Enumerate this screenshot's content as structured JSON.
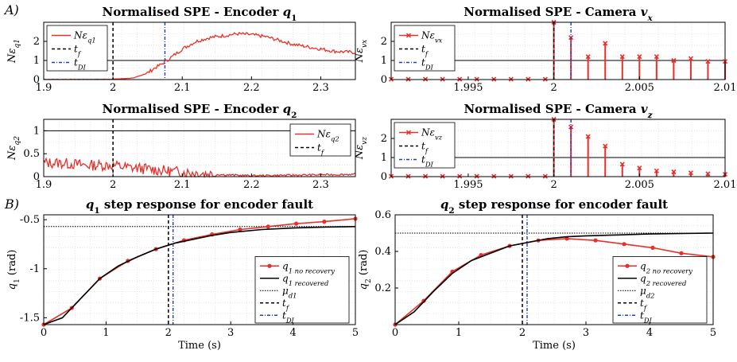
{
  "panel_labels": [
    "A)",
    "B)"
  ],
  "colors": {
    "red": "#e8302a",
    "black": "#000000",
    "blue": "#1f3fbf",
    "grid": "#d7d7d7"
  },
  "chart_data": [
    {
      "id": "p1",
      "type": "line",
      "title": "Normalised SPE - Encoder q1",
      "ylabel": "Nε_q1",
      "xlabel": "",
      "xlim": [
        1.9,
        2.35
      ],
      "ylim": [
        0,
        3.0
      ],
      "xticks": [
        1.9,
        2.0,
        2.1,
        2.2,
        2.3
      ],
      "xticklabels": [
        "1.9",
        "2",
        "2.1",
        "2.2",
        "2.3"
      ],
      "yticks": [
        0,
        1,
        2
      ],
      "yticklabels": [
        "0",
        "1",
        "2"
      ],
      "threshold": 1,
      "t_f": 2.0,
      "t_DI": 2.075,
      "series": [
        {
          "name": "Nε_q1",
          "x": [
            1.9,
            1.97,
            2.0,
            2.03,
            2.05,
            2.06,
            2.07,
            2.08,
            2.1,
            2.12,
            2.14,
            2.16,
            2.18,
            2.2,
            2.22,
            2.24,
            2.26,
            2.28,
            2.3,
            2.32,
            2.35
          ],
          "y": [
            0.01,
            0.01,
            0.02,
            0.08,
            0.35,
            0.6,
            0.8,
            1.05,
            1.6,
            2.0,
            2.2,
            2.3,
            2.4,
            2.35,
            2.25,
            2.05,
            1.85,
            1.72,
            1.6,
            1.48,
            1.42
          ]
        }
      ],
      "legend": [
        "Nε_q1",
        "t_f",
        "t_DI"
      ],
      "legend_position": "top-left"
    },
    {
      "id": "p2",
      "type": "stem",
      "title": "Normalised SPE - Camera vx",
      "ylabel": "Nε_vx",
      "xlabel": "",
      "xlim": [
        1.9905,
        2.01
      ],
      "ylim": [
        0,
        3.0
      ],
      "xticks": [
        1.995,
        2.0,
        2.005,
        2.01
      ],
      "xticklabels": [
        "1.995",
        "2",
        "2.005",
        "2.01"
      ],
      "yticks": [
        0,
        1,
        2
      ],
      "yticklabels": [
        "0",
        "1",
        "2"
      ],
      "threshold": 1,
      "t_f": 2.0,
      "t_DI": 2.001,
      "series": [
        {
          "name": "Nε_vx",
          "x": [
            1.9905,
            1.9915,
            1.9925,
            1.9935,
            1.9945,
            1.9955,
            1.9965,
            1.9975,
            1.9985,
            1.9995,
            2.0,
            2.001,
            2.002,
            2.003,
            2.004,
            2.005,
            2.006,
            2.007,
            2.008,
            2.009,
            2.01
          ],
          "y": [
            0.02,
            0.02,
            0.02,
            0.02,
            0.02,
            0.02,
            0.02,
            0.02,
            0.02,
            0.02,
            3.0,
            2.2,
            1.2,
            1.9,
            1.2,
            1.2,
            1.2,
            1.0,
            1.1,
            0.95,
            0.95
          ]
        }
      ],
      "legend": [
        "Nε_vx",
        "t_f",
        "t_DI"
      ],
      "legend_position": "top-left"
    },
    {
      "id": "p3",
      "type": "line",
      "title": "Normalised SPE - Encoder q2",
      "ylabel": "Nε_q2",
      "xlabel": "",
      "xlim": [
        1.9,
        2.35
      ],
      "ylim": [
        0,
        1.25
      ],
      "xticks": [
        1.9,
        2.0,
        2.1,
        2.2,
        2.3
      ],
      "xticklabels": [
        "1.9",
        "2",
        "2.1",
        "2.2",
        "2.3"
      ],
      "yticks": [
        0,
        0.5,
        1
      ],
      "yticklabels": [
        "0",
        "0.5",
        "1"
      ],
      "threshold": 1,
      "t_f": 2.0,
      "series": [
        {
          "name": "Nε_q2",
          "x": [
            1.9,
            1.92,
            1.94,
            1.96,
            1.98,
            2.0,
            2.02,
            2.04,
            2.06,
            2.08,
            2.1,
            2.12,
            2.14,
            2.16,
            2.18,
            2.2,
            2.25,
            2.3,
            2.35
          ],
          "y": [
            0.3,
            0.3,
            0.28,
            0.25,
            0.25,
            0.25,
            0.2,
            0.18,
            0.15,
            0.12,
            0.1,
            0.08,
            0.06,
            0.04,
            0.03,
            0.02,
            0.03,
            0.04,
            0.05
          ]
        }
      ],
      "legend": [
        "Nε_q2",
        "t_f"
      ],
      "legend_position": "top-right"
    },
    {
      "id": "p4",
      "type": "stem",
      "title": "Normalised SPE - Camera vz",
      "ylabel": "Nε_vz",
      "xlabel": "",
      "xlim": [
        1.9905,
        2.01
      ],
      "ylim": [
        0,
        3.0
      ],
      "xticks": [
        1.995,
        2.0,
        2.005,
        2.01
      ],
      "xticklabels": [
        "1.995",
        "2",
        "2.005",
        "2.01"
      ],
      "yticks": [
        0,
        1,
        2
      ],
      "yticklabels": [
        "0",
        "1",
        "2"
      ],
      "threshold": 1,
      "t_f": 2.0,
      "t_DI": 2.001,
      "series": [
        {
          "name": "Nε_vz",
          "x": [
            1.9905,
            1.9915,
            1.9925,
            1.9935,
            1.9945,
            1.9955,
            1.9965,
            1.9975,
            1.9985,
            1.9995,
            2.0,
            2.001,
            2.002,
            2.003,
            2.004,
            2.005,
            2.006,
            2.007,
            2.008,
            2.009,
            2.01
          ],
          "y": [
            0.02,
            0.02,
            0.02,
            0.02,
            0.02,
            0.02,
            0.02,
            0.02,
            0.02,
            0.02,
            3.0,
            2.6,
            2.1,
            1.6,
            0.65,
            0.45,
            0.3,
            0.25,
            0.2,
            0.15,
            0.12
          ]
        }
      ],
      "legend": [
        "Nε_vz",
        "t_f",
        "t_DI"
      ],
      "legend_position": "top-left"
    },
    {
      "id": "p5",
      "type": "line",
      "title": "q1 step response for encoder fault",
      "xlabel": "Time (s)",
      "ylabel": "q1 (rad)",
      "xlim": [
        0,
        5
      ],
      "ylim": [
        -1.57,
        -0.45
      ],
      "xticks": [
        0,
        1,
        2,
        3,
        4,
        5
      ],
      "xticklabels": [
        "0",
        "1",
        "2",
        "3",
        "4",
        "5"
      ],
      "yticks": [
        -1.5,
        -1,
        -0.5
      ],
      "yticklabels": [
        "-1.5",
        "-1",
        "-0.5"
      ],
      "mu_d": -0.57,
      "t_f": 2.0,
      "t_DI": 2.075,
      "series": [
        {
          "name": "q1 no recovery",
          "x": [
            0,
            0.45,
            0.9,
            1.35,
            1.8,
            2.25,
            2.7,
            3.15,
            3.6,
            4.05,
            4.5,
            5.0
          ],
          "y": [
            -1.57,
            -1.4,
            -1.1,
            -0.92,
            -0.8,
            -0.71,
            -0.65,
            -0.6,
            -0.57,
            -0.54,
            -0.52,
            -0.49
          ]
        },
        {
          "name": "q1 recovered",
          "x": [
            0,
            0.3,
            0.6,
            0.9,
            1.2,
            1.5,
            1.8,
            2.1,
            2.4,
            2.7,
            3.0,
            3.5,
            4.0,
            4.5,
            5.0
          ],
          "y": [
            -1.57,
            -1.5,
            -1.3,
            -1.1,
            -0.97,
            -0.88,
            -0.8,
            -0.74,
            -0.7,
            -0.66,
            -0.63,
            -0.6,
            -0.585,
            -0.575,
            -0.57
          ]
        }
      ],
      "legend": [
        "q1 no recovery",
        "q1 recovered",
        "μd1",
        "t_f",
        "t_DI"
      ],
      "legend_position": "right"
    },
    {
      "id": "p6",
      "type": "line",
      "title": "q2 step response for encoder fault",
      "xlabel": "Time (s)",
      "ylabel": "q2 (rad)",
      "xlim": [
        0,
        5
      ],
      "ylim": [
        0,
        0.6
      ],
      "xticks": [
        0,
        1,
        2,
        3,
        4,
        5
      ],
      "xticklabels": [
        "0",
        "1",
        "2",
        "3",
        "4",
        "5"
      ],
      "yticks": [
        0.2,
        0.4,
        0.6
      ],
      "yticklabels": [
        "0.2",
        "0.4",
        "0.6"
      ],
      "mu_d": 0.5,
      "t_f": 2.0,
      "t_DI": 2.075,
      "series": [
        {
          "name": "q2 no recovery",
          "x": [
            0,
            0.45,
            0.9,
            1.35,
            1.8,
            2.25,
            2.7,
            3.15,
            3.6,
            4.05,
            4.5,
            5.0
          ],
          "y": [
            0,
            0.13,
            0.29,
            0.38,
            0.43,
            0.46,
            0.47,
            0.46,
            0.44,
            0.42,
            0.39,
            0.37
          ]
        },
        {
          "name": "q2 recovered",
          "x": [
            0,
            0.3,
            0.6,
            0.9,
            1.2,
            1.5,
            1.8,
            2.1,
            2.4,
            2.7,
            3.0,
            3.5,
            4.0,
            4.5,
            5.0
          ],
          "y": [
            0,
            0.07,
            0.18,
            0.28,
            0.35,
            0.39,
            0.43,
            0.45,
            0.47,
            0.48,
            0.485,
            0.49,
            0.495,
            0.498,
            0.5
          ]
        }
      ],
      "legend": [
        "q2 no recovery",
        "q2 recovered",
        "μd2",
        "t_f",
        "t_DI"
      ],
      "legend_position": "right"
    }
  ]
}
